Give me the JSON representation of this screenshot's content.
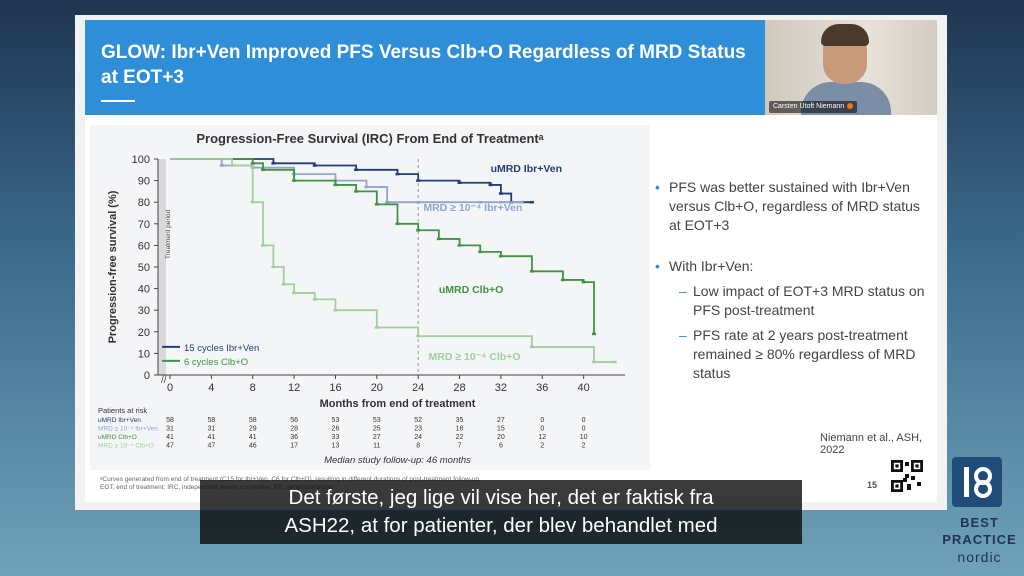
{
  "slide": {
    "title": "GLOW: Ibr+Ven Improved PFS Versus Clb+O Regardless of MRD Status at EOT+3",
    "page_number": "15",
    "reference": "Niemann et al., ASH, 2022",
    "footnote_1": "ᵃCurves generated from end of treatment (C15 for Ibr+Ven, C6 for Clb+O), resulting in different durations of post-treatment follow-up.",
    "footnote_2": "EOT, end of treatment; IRC, independent review committee; PB, peripheral blood.",
    "bullets": [
      {
        "text": "PFS was better sustained with Ibr+Ven versus Clb+O, regardless of MRD status at EOT+3"
      },
      {
        "text": "With Ibr+Ven:",
        "subs": [
          "Low impact of EOT+3 MRD status on PFS post-treatment",
          "PFS rate at 2 years post-treatment remained ≥ 80% regardless of MRD status"
        ]
      }
    ]
  },
  "video": {
    "presenter_name": "Carsten Utoft Niemann"
  },
  "caption": {
    "line1": "Det første, jeg lige vil vise her, det er faktisk fra",
    "line2": "ASH22, at for patienter, der blev behandlet med"
  },
  "brand": {
    "line1": "BEST",
    "line2": "PRACTICE",
    "line3": "nordic"
  },
  "colors": {
    "accent": "#2e8fd8",
    "umrd_ibr": "#1f3f7a",
    "mrd_ibr": "#8fa6d0",
    "umrd_clb": "#3f9440",
    "mrd_clb": "#9fd09a"
  },
  "chart_data": {
    "type": "line",
    "title": "Progression-Free Survival (IRC) From End of Treatmentᵃ",
    "xlabel": "Months from end of treatment",
    "ylabel": "Progression-free survival (%)",
    "xlim": [
      0,
      44
    ],
    "ylim": [
      0,
      100
    ],
    "xticks": [
      0,
      4,
      8,
      12,
      16,
      20,
      24,
      28,
      32,
      36,
      40
    ],
    "yticks": [
      0,
      10,
      20,
      30,
      40,
      50,
      60,
      70,
      80,
      90,
      100
    ],
    "treatment_period_label": "Treatment period",
    "median_followup": "Median study follow-up: 46 months",
    "legend": [
      {
        "label": "15 cycles Ibr+Ven",
        "color": "#1f3f7a"
      },
      {
        "label": "6 cycles Clb+O",
        "color": "#3f9440"
      }
    ],
    "series": [
      {
        "name": "uMRD Ibr+Ven",
        "color": "#1f3f7a",
        "x": [
          0,
          10,
          14,
          18,
          22,
          24,
          28,
          31,
          32,
          33,
          34,
          35
        ],
        "y": [
          100,
          98,
          97,
          95,
          93,
          90,
          89,
          88,
          84,
          80,
          80,
          80
        ]
      },
      {
        "name": "MRD ≥ 10⁻⁴ Ibr+Ven",
        "color": "#8fa6d0",
        "x": [
          0,
          5,
          8,
          12,
          16,
          19,
          21,
          24,
          30,
          32,
          34
        ],
        "y": [
          100,
          97,
          96,
          93,
          90,
          87,
          80,
          80,
          80,
          80,
          80
        ]
      },
      {
        "name": "uMRD Clb+O",
        "color": "#3f9440",
        "x": [
          0,
          8,
          9,
          12,
          16,
          18,
          20,
          22,
          24,
          26,
          28,
          30,
          32,
          35,
          38,
          40,
          41
        ],
        "y": [
          100,
          98,
          95,
          90,
          88,
          85,
          79,
          70,
          67,
          63,
          60,
          57,
          55,
          48,
          44,
          43,
          19
        ]
      },
      {
        "name": "MRD ≥ 10⁻⁴ Clb+O",
        "color": "#9fd09a",
        "x": [
          0,
          6,
          8,
          9,
          10,
          11,
          12,
          14,
          16,
          20,
          24,
          35,
          41,
          43
        ],
        "y": [
          100,
          97,
          80,
          60,
          50,
          42,
          38,
          35,
          30,
          22,
          18,
          13,
          6,
          6
        ]
      }
    ],
    "risk_table": {
      "header": "Patients at risk",
      "rows": [
        {
          "label": "uMRD Ibr+Ven",
          "values": [
            "58",
            "58",
            "58",
            "56",
            "53",
            "53",
            "52",
            "35",
            "27",
            "0",
            "0"
          ]
        },
        {
          "label": "MRD ≥ 10⁻⁴ Ibr+Ven",
          "values": [
            "31",
            "31",
            "29",
            "28",
            "26",
            "25",
            "23",
            "16",
            "15",
            "0",
            "0"
          ]
        },
        {
          "label": "uMRD Clb+O",
          "values": [
            "41",
            "41",
            "41",
            "36",
            "33",
            "27",
            "24",
            "22",
            "20",
            "12",
            "10"
          ]
        },
        {
          "label": "MRD ≥ 10⁻⁴ Clb+O",
          "values": [
            "47",
            "47",
            "46",
            "17",
            "13",
            "11",
            "8",
            "7",
            "6",
            "2",
            "2"
          ]
        }
      ]
    }
  }
}
